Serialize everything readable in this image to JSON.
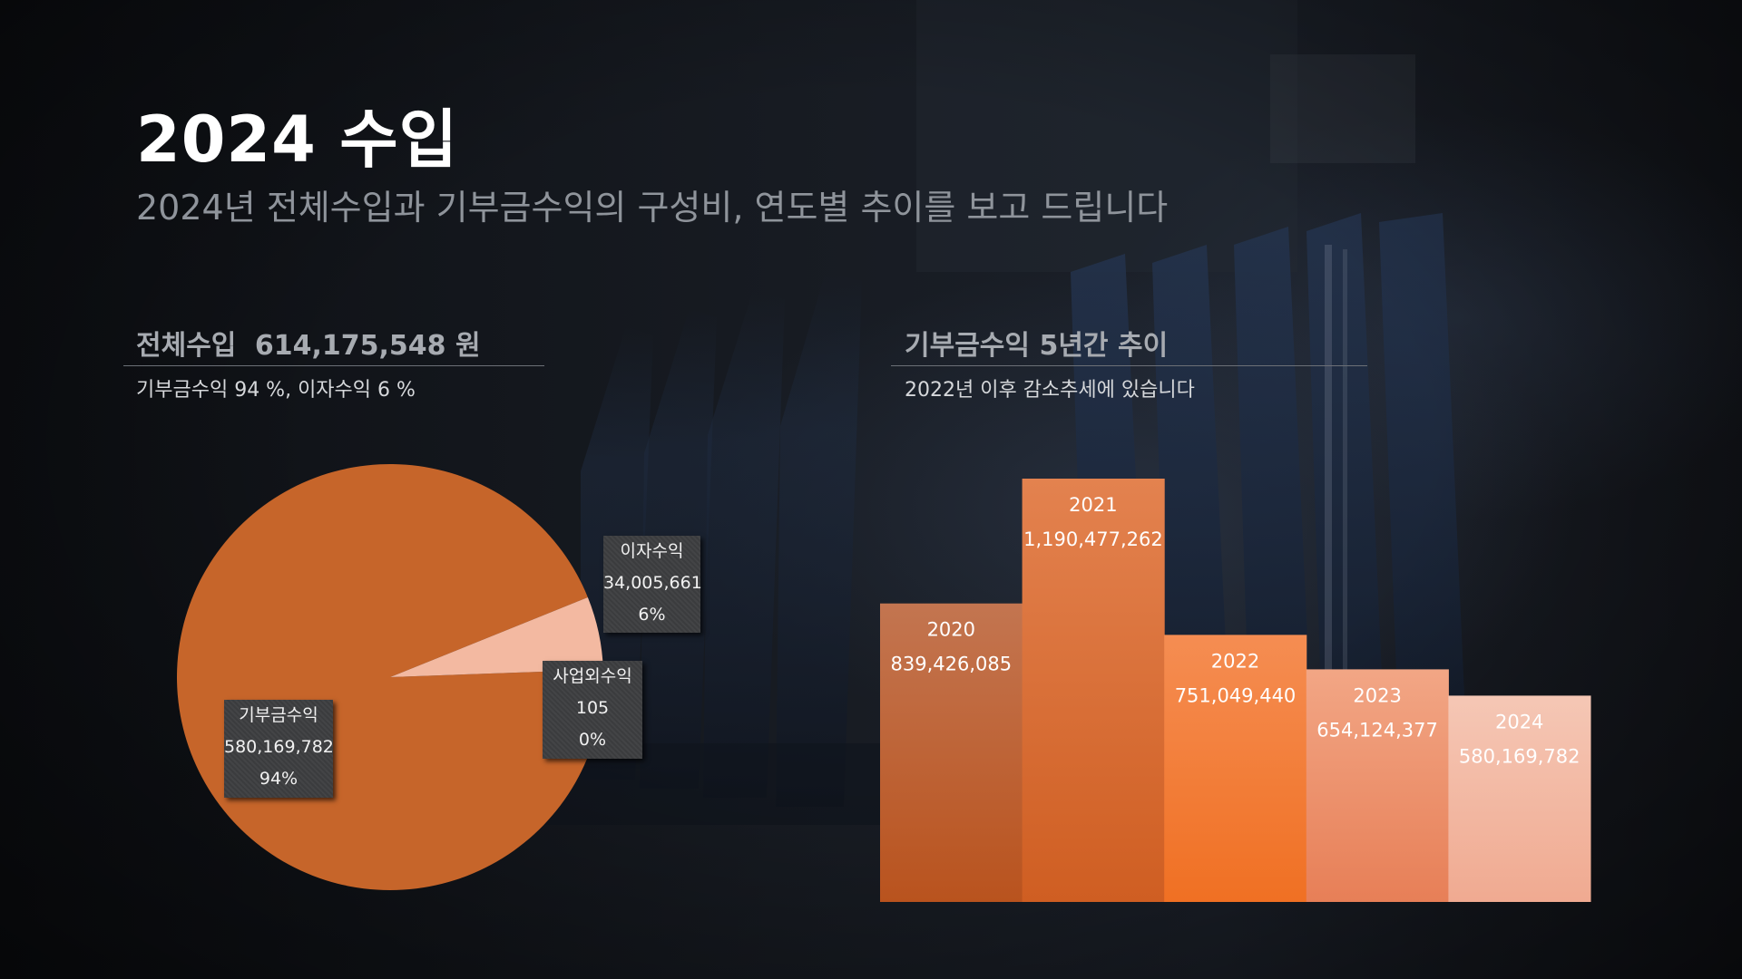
{
  "header": {
    "title": "2024 수입",
    "subtitle": "2024년 전체수입과 기부금수익의 구성비, 연도별 추이를 보고 드립니다"
  },
  "left_section": {
    "heading_label": "전체수입",
    "heading_value": "614,175,548 원",
    "note": "기부금수익 94 %, 이자수익 6 %"
  },
  "right_section": {
    "heading": "기부금수익 5년간 추이",
    "note": "2022년 이후 감소추세에 있습니다"
  },
  "colors": {
    "pie_main": "#c6652a",
    "pie_interest": "#f3b9a1",
    "pie_other": "#9a3a1a"
  },
  "chart_data": [
    {
      "type": "pie",
      "slices": [
        {
          "label": "기부금수익",
          "value": 580169782,
          "value_text": "580,169,782",
          "percent_text": "94%"
        },
        {
          "label": "이자수익",
          "value": 34005661,
          "value_text": "34,005,661",
          "percent_text": "6%"
        },
        {
          "label": "사업외수익",
          "value": 105,
          "value_text": "105",
          "percent_text": "0%"
        }
      ]
    },
    {
      "type": "bar",
      "categories": [
        "2020",
        "2021",
        "2022",
        "2023",
        "2024"
      ],
      "values": [
        839426085,
        1190477262,
        751049440,
        654124377,
        580169782
      ],
      "value_labels": [
        "839,426,085",
        "1,190,477,262",
        "751,049,440",
        "654,124,377",
        "580,169,782"
      ],
      "ylim": [
        0,
        1190477262
      ]
    }
  ]
}
